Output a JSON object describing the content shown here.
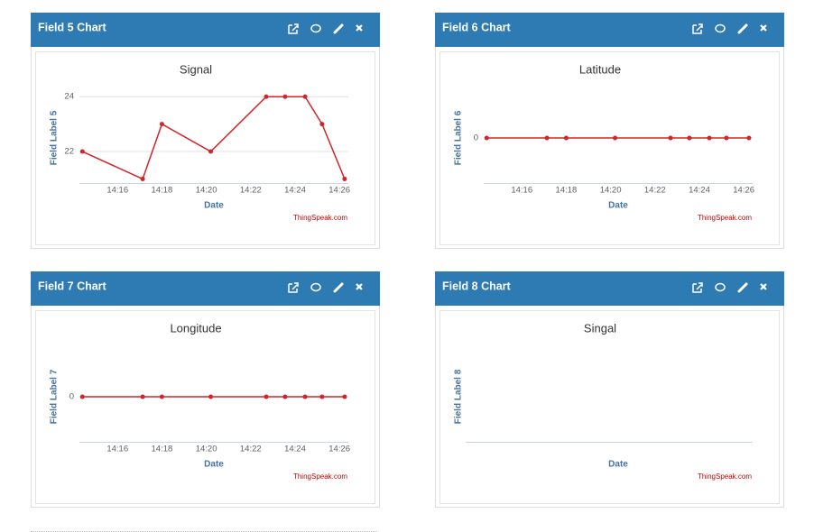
{
  "chart_data": [
    {
      "panel_title": "Field 5 Chart",
      "type": "line",
      "title": "Signal",
      "x_label": "Date",
      "y_label": "Field Label 5",
      "credit": "ThingSpeak.com",
      "x": [
        "14:14:25",
        "14:17:08",
        "14:18:00",
        "14:20:12",
        "14:22:42",
        "14:23:33",
        "14:24:27",
        "14:25:13",
        "14:26:14"
      ],
      "series": [
        {
          "color": "#d0262b",
          "values": [
            22,
            21,
            23,
            22,
            24,
            24,
            24,
            23,
            21
          ]
        }
      ],
      "xlim": [
        "14:14:17",
        "14:26:24"
      ],
      "xticks": [
        "14:16",
        "14:18",
        "14:20",
        "14:22",
        "14:24",
        "14:26"
      ],
      "ylim": [
        20.85,
        24.5
      ],
      "yticks": [
        22,
        24
      ],
      "grid": true
    },
    {
      "panel_title": "Field 6 Chart",
      "type": "line",
      "title": "Latitude",
      "x_label": "Date",
      "y_label": "Field Label 6",
      "credit": "ThingSpeak.com",
      "x": [
        "14:14:25",
        "14:17:08",
        "14:18:00",
        "14:20:12",
        "14:22:42",
        "14:23:33",
        "14:24:27",
        "14:25:13",
        "14:26:14"
      ],
      "series": [
        {
          "color": "#d0262b",
          "values": [
            0,
            0,
            0,
            0,
            0,
            0,
            0,
            0,
            0
          ]
        }
      ],
      "xlim": [
        "14:14:17",
        "14:26:24"
      ],
      "xticks": [
        "14:16",
        "14:18",
        "14:20",
        "14:22",
        "14:24",
        "14:26"
      ],
      "ylim": [
        -0.9,
        1.1
      ],
      "yticks": [
        0
      ],
      "grid": true
    },
    {
      "panel_title": "Field 7 Chart",
      "type": "line",
      "title": "Longitude",
      "x_label": "Date",
      "y_label": "Field Label 7",
      "credit": "ThingSpeak.com",
      "x": [
        "14:14:25",
        "14:17:08",
        "14:18:00",
        "14:20:12",
        "14:22:42",
        "14:23:33",
        "14:24:27",
        "14:25:13",
        "14:26:14"
      ],
      "series": [
        {
          "color": "#d0262b",
          "values": [
            0,
            0,
            0,
            0,
            0,
            0,
            0,
            0,
            0
          ]
        }
      ],
      "xlim": [
        "14:14:17",
        "14:26:24"
      ],
      "xticks": [
        "14:16",
        "14:18",
        "14:20",
        "14:22",
        "14:24",
        "14:26"
      ],
      "ylim": [
        -0.9,
        1.1
      ],
      "yticks": [
        0
      ],
      "grid": true
    },
    {
      "panel_title": "Field 8 Chart",
      "type": "line",
      "title": "Singal",
      "x_label": "Date",
      "y_label": "Field Label 8",
      "credit": "ThingSpeak.com",
      "x": [],
      "series": [
        {
          "color": "#d0262b",
          "values": []
        }
      ],
      "grid": true
    }
  ]
}
